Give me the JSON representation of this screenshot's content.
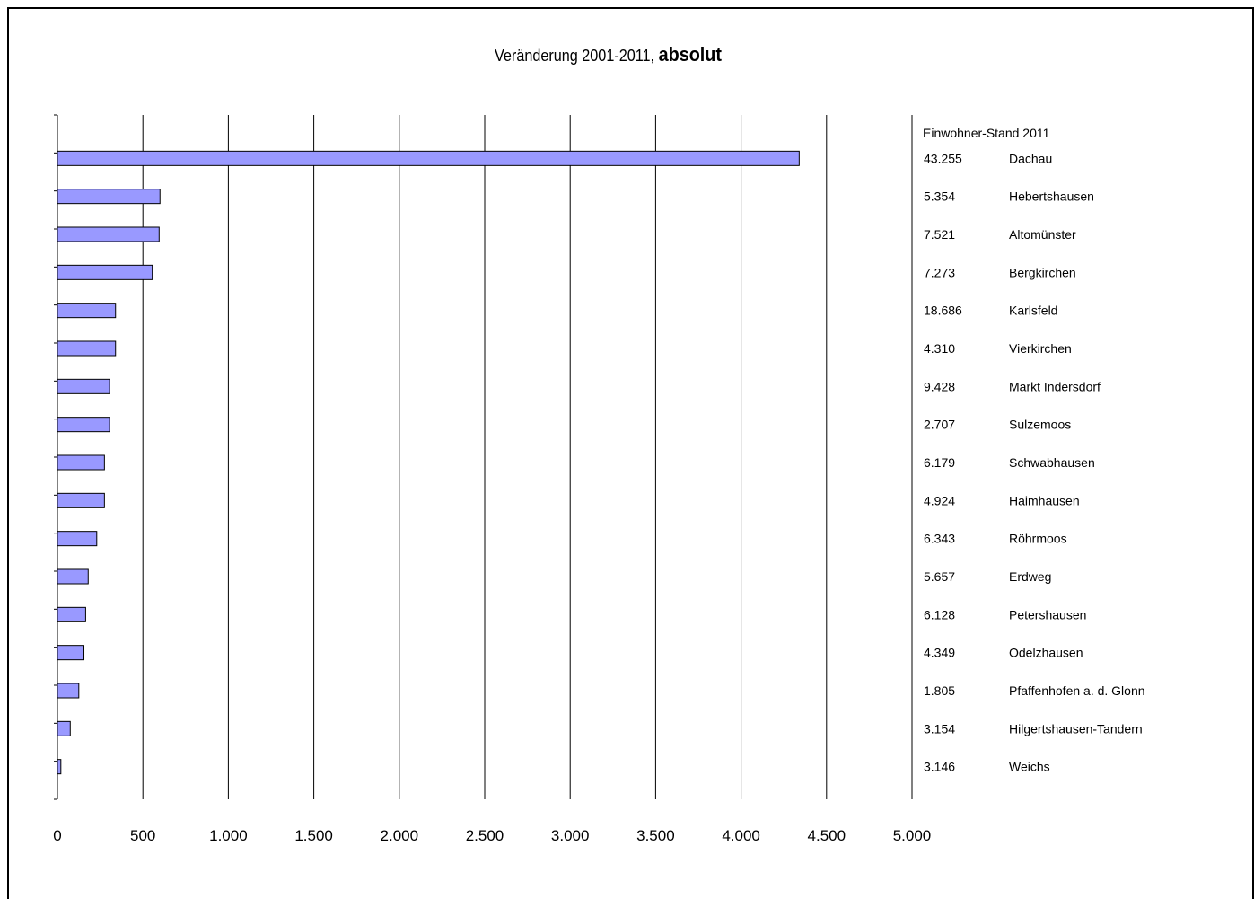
{
  "chart_data": {
    "type": "bar",
    "orientation": "horizontal",
    "title_regular": "Veränderung 2001-2011,",
    "title_bold": "absolut",
    "xlim": [
      0,
      5000
    ],
    "x_ticks": [
      0,
      500,
      1000,
      1500,
      2000,
      2500,
      3000,
      3500,
      4000,
      4500,
      5000
    ],
    "x_tick_labels": [
      "0",
      "500",
      "1.000",
      "1.500",
      "2.000",
      "2.500",
      "3.000",
      "3.500",
      "4.000",
      "4.500",
      "5.000"
    ],
    "grid": "vertical",
    "bar_color": "#9999ff",
    "side_header": "Einwohner-Stand 2011",
    "categories": [
      {
        "name": "Dachau",
        "population": "43.255",
        "value": 4340
      },
      {
        "name": "Hebertshausen",
        "population": "5.354",
        "value": 600
      },
      {
        "name": "Altomünster",
        "population": "7.521",
        "value": 595
      },
      {
        "name": "Bergkirchen",
        "population": "7.273",
        "value": 555
      },
      {
        "name": "Karlsfeld",
        "population": "18.686",
        "value": 340
      },
      {
        "name": "Vierkirchen",
        "population": "4.310",
        "value": 340
      },
      {
        "name": "Markt Indersdorf",
        "population": "9.428",
        "value": 305
      },
      {
        "name": "Sulzemoos",
        "population": "2.707",
        "value": 305
      },
      {
        "name": "Schwabhausen",
        "population": "6.179",
        "value": 275
      },
      {
        "name": "Haimhausen",
        "population": "4.924",
        "value": 275
      },
      {
        "name": "Röhrmoos",
        "population": "6.343",
        "value": 230
      },
      {
        "name": "Erdweg",
        "population": "5.657",
        "value": 180
      },
      {
        "name": "Petershausen",
        "population": "6.128",
        "value": 165
      },
      {
        "name": "Odelzhausen",
        "population": "4.349",
        "value": 155
      },
      {
        "name": "Pfaffenhofen a. d. Glonn",
        "population": "1.805",
        "value": 125
      },
      {
        "name": "Hilgertshausen-Tandern",
        "population": "3.154",
        "value": 75
      },
      {
        "name": "Weichs",
        "population": "3.146",
        "value": 20
      }
    ]
  }
}
